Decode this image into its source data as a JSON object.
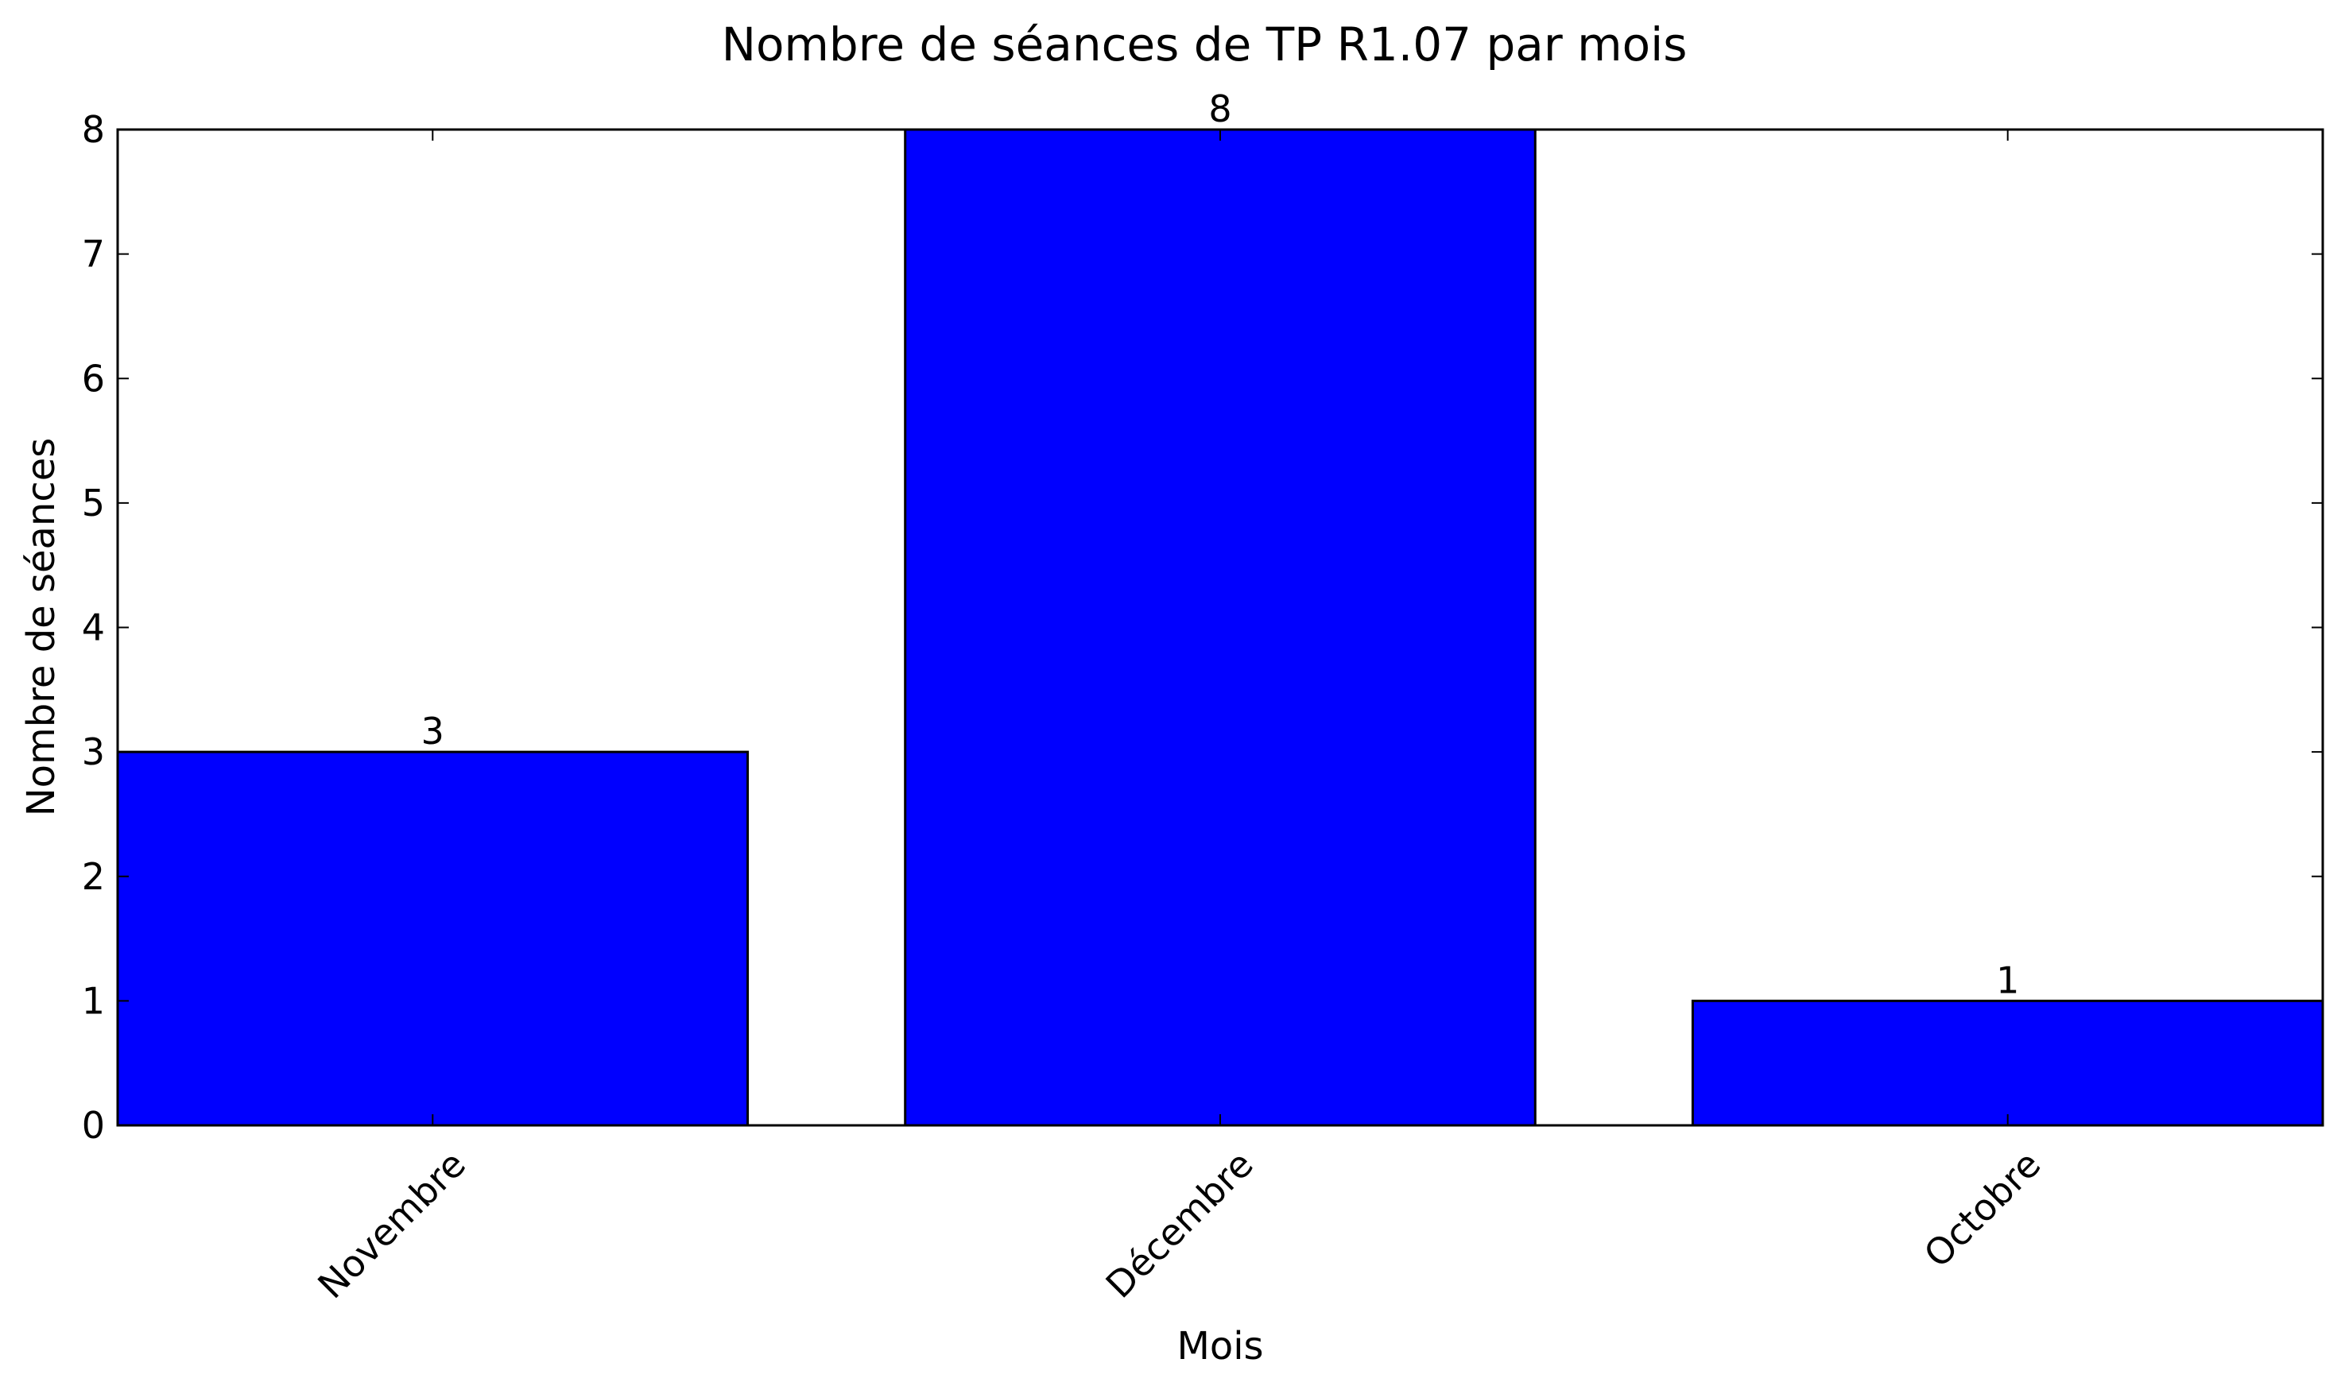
{
  "chart_data": {
    "type": "bar",
    "title": "Nombre de séances de TP R1.07 par mois",
    "xlabel": "Mois",
    "ylabel": "Nombre de séances",
    "categories": [
      "Novembre",
      "Décembre",
      "Octobre"
    ],
    "values": [
      3,
      8,
      1
    ],
    "data_labels": [
      "3",
      "8",
      "1"
    ],
    "ylim": [
      0,
      8
    ],
    "yticks": [
      0,
      1,
      2,
      3,
      4,
      5,
      6,
      7,
      8
    ],
    "grid": false,
    "legend": "none",
    "bar_color": "#0000ff",
    "edge_color": "#000000"
  }
}
